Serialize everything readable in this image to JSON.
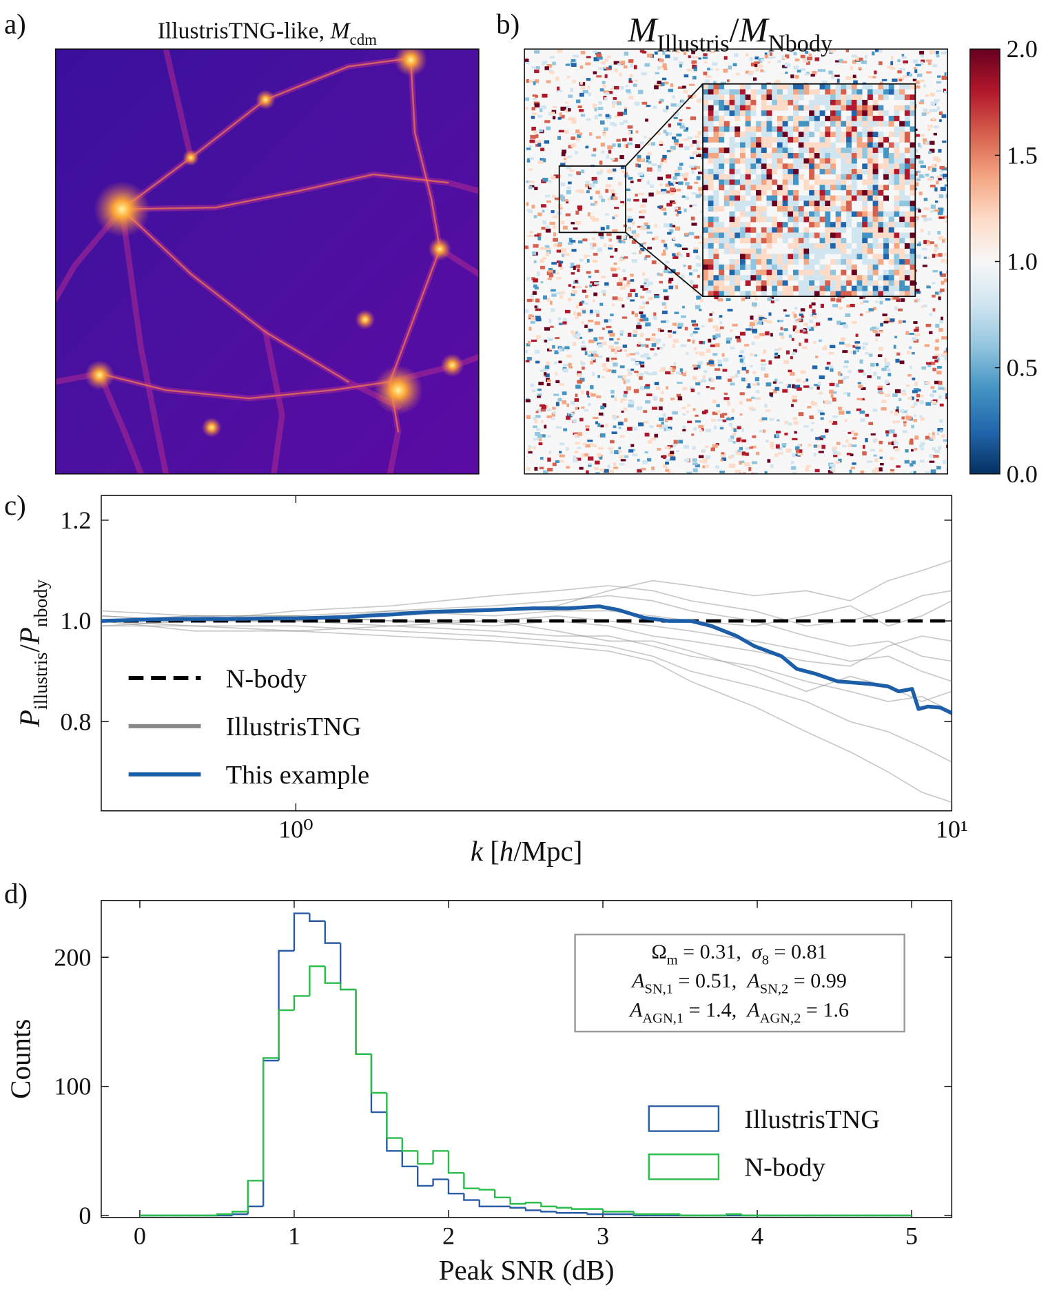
{
  "chart_data": [
    {
      "type": "image",
      "panel": "a)",
      "title": [
        {
          "text": "IllustrisTNG-like, "
        },
        {
          "math": "M",
          "sub": "cdm"
        }
      ],
      "colormap": "plasma"
    },
    {
      "type": "heatmap",
      "panel": "b)",
      "title": [
        {
          "math": "M",
          "sub": "Illustris"
        },
        {
          "text": "/"
        },
        {
          "math": "M",
          "sub": "Nbody"
        }
      ],
      "colormap": "RdBu_r",
      "clim": [
        0,
        2
      ],
      "cticks": [
        {
          "value": 0,
          "label": "0.0"
        },
        0.5,
        {
          "value": 1,
          "label": "1.0"
        },
        1.5,
        {
          "value": 2,
          "label": "2.0"
        }
      ]
    },
    {
      "type": "line",
      "panel": "c)",
      "xscale": "log",
      "xlim": [
        0.505,
        10
      ],
      "ylim": [
        0.623,
        1.249
      ],
      "xticks": [
        {
          "value": 1,
          "label": "10⁰"
        },
        {
          "value": 10,
          "label": "10¹"
        }
      ],
      "yticks": [
        0.8,
        {
          "value": 1,
          "label": "1.0"
        },
        1.2
      ],
      "xlabel": [
        {
          "math": "k"
        },
        {
          "text": " ["
        },
        {
          "math": "h"
        },
        {
          "text": "/Mpc]"
        }
      ],
      "ylabel": [
        {
          "math": "P",
          "sub": "illustris"
        },
        {
          "text": "/"
        },
        {
          "math": "P",
          "sub": "nbody"
        }
      ],
      "legend": "lower left",
      "series": [
        {
          "name": "N-body",
          "color": "#000000",
          "dash": true,
          "x": [
            0.505,
            10
          ],
          "values": [
            1,
            1
          ]
        },
        {
          "name": "IllustrisTNG",
          "color": "#888888",
          "x": [
            0.505,
            0.7,
            1,
            1.4,
            2,
            2.5,
            3,
            3.5,
            4,
            5,
            6,
            7,
            8,
            9,
            10
          ],
          "values": [
            [
              1.0,
              1.01,
              1.0,
              1.02,
              1.03,
              1.04,
              1.05,
              1.04,
              1.02,
              1.0,
              0.97,
              0.95,
              0.96,
              0.93,
              0.92
            ],
            [
              1.0,
              0.99,
              0.99,
              0.98,
              0.97,
              0.96,
              0.95,
              0.93,
              0.9,
              0.87,
              0.84,
              0.8,
              0.78,
              0.75,
              0.72
            ],
            [
              1.01,
              1.0,
              1.01,
              1.0,
              1.0,
              1.01,
              1.0,
              0.99,
              0.98,
              0.96,
              0.94,
              0.92,
              0.93,
              0.9,
              0.88
            ],
            [
              0.99,
              1.0,
              1.0,
              1.01,
              1.02,
              1.03,
              1.06,
              1.08,
              1.07,
              1.05,
              1.06,
              1.04,
              1.08,
              1.1,
              1.12
            ],
            [
              1.0,
              0.98,
              0.98,
              0.97,
              0.96,
              0.95,
              0.94,
              0.92,
              0.88,
              0.83,
              0.78,
              0.74,
              0.7,
              0.66,
              0.64
            ],
            [
              1.02,
              1.01,
              1.01,
              1.0,
              0.99,
              1.0,
              0.99,
              0.97,
              0.96,
              0.94,
              0.92,
              0.91,
              0.95,
              0.97,
              0.96
            ],
            [
              1.0,
              1.0,
              1.02,
              1.03,
              1.05,
              1.06,
              1.07,
              1.06,
              1.04,
              1.02,
              0.99,
              1.0,
              1.02,
              1.05,
              1.06
            ],
            [
              0.99,
              0.99,
              0.98,
              0.99,
              0.98,
              0.97,
              0.97,
              0.95,
              0.93,
              0.91,
              0.88,
              0.86,
              0.84,
              0.85,
              0.82
            ],
            [
              1.01,
              1.0,
              1.0,
              0.99,
              1.0,
              0.98,
              0.96,
              0.96,
              0.94,
              0.9,
              0.86,
              0.89,
              0.87,
              0.84,
              0.86
            ],
            [
              1.0,
              1.01,
              1.01,
              1.02,
              1.01,
              1.02,
              1.02,
              1.01,
              1.0,
              0.99,
              1.01,
              1.03,
              0.99,
              1.01,
              1.04
            ]
          ]
        },
        {
          "name": "This example",
          "color": "#1c5ea8",
          "x": [
            0.505,
            0.6,
            0.7,
            0.8,
            0.9,
            1.0,
            1.2,
            1.4,
            1.6,
            1.8,
            2.0,
            2.3,
            2.6,
            2.9,
            3.1,
            3.4,
            3.7,
            4.0,
            4.3,
            4.7,
            5.0,
            5.5,
            5.8,
            6.2,
            6.7,
            7.5,
            8.0,
            8.3,
            8.7,
            8.9,
            9.2,
            9.6,
            10
          ],
          "values": [
            1.0,
            1.003,
            1.004,
            1.004,
            1.005,
            1.005,
            1.008,
            1.013,
            1.018,
            1.02,
            1.022,
            1.025,
            1.025,
            1.029,
            1.022,
            1.006,
            1.0,
            1.0,
            0.99,
            0.97,
            0.95,
            0.93,
            0.905,
            0.895,
            0.88,
            0.875,
            0.87,
            0.86,
            0.865,
            0.825,
            0.83,
            0.828,
            0.817
          ]
        }
      ]
    },
    {
      "type": "histogram",
      "panel": "d)",
      "bins": [
        0,
        0.1,
        0.2,
        0.3,
        0.4,
        0.5,
        0.6,
        0.7,
        0.8,
        0.9,
        1,
        1.1,
        1.2,
        1.3,
        1.4,
        1.5,
        1.6,
        1.7,
        1.8,
        1.9,
        2,
        2.1,
        2.2,
        2.3,
        2.4,
        2.5,
        2.6,
        2.7,
        2.8,
        2.9,
        3,
        3.1,
        3.2,
        3.3,
        3.4,
        3.5,
        3.6,
        3.7,
        3.8,
        3.9,
        4,
        4.1,
        4.2,
        4.3,
        4.4,
        4.5,
        4.6,
        4.7,
        4.8,
        4.9,
        5
      ],
      "series": [
        {
          "name": "IllustrisTNG",
          "color": "#2a5ca6",
          "values": [
            0,
            0,
            0,
            0,
            0,
            0,
            1,
            7,
            120,
            205,
            234,
            228,
            211,
            175,
            125,
            80,
            50,
            38,
            23,
            28,
            17,
            12,
            7,
            7,
            6,
            4,
            3,
            2,
            2,
            1,
            1,
            1,
            0,
            0,
            0,
            0,
            0,
            0,
            0,
            0,
            0,
            0,
            0,
            0,
            0,
            0,
            0,
            0,
            0,
            0
          ]
        },
        {
          "name": "N-body",
          "color": "#2bbd4c",
          "values": [
            0,
            0,
            0,
            0,
            0,
            1,
            3,
            27,
            122,
            159,
            170,
            193,
            180,
            175,
            125,
            95,
            60,
            50,
            40,
            50,
            33,
            21,
            20,
            14,
            9,
            10,
            7,
            6,
            5,
            5,
            3,
            3,
            1,
            1,
            1,
            0,
            0,
            0,
            1,
            0,
            0,
            0,
            0,
            0,
            0,
            0,
            0,
            0,
            0,
            0
          ]
        }
      ],
      "xlim": [
        -0.25,
        5.26
      ],
      "ylim": [
        -1.5,
        244
      ],
      "xticks": [
        0,
        1,
        2,
        3,
        4,
        5
      ],
      "yticks": [
        0,
        100,
        200
      ],
      "xlabel": "Peak SNR (dB)",
      "ylabel": "Counts",
      "legend": "center right",
      "annotation": [
        [
          {
            "text": "Ω",
            "sub": "m"
          },
          {
            "text": " = 0.31,  "
          },
          {
            "math": "σ",
            "sub": "8"
          },
          {
            "text": " = 0.81"
          }
        ],
        [
          {
            "math": "A",
            "sub": "SN,1"
          },
          {
            "text": " = 0.51,  "
          },
          {
            "math": "A",
            "sub": "SN,2"
          },
          {
            "text": " = 0.99"
          }
        ],
        [
          {
            "math": "A",
            "sub": "AGN,1"
          },
          {
            "text": " = 1.4,  "
          },
          {
            "math": "A",
            "sub": "AGN,2"
          },
          {
            "text": " = 1.6"
          }
        ]
      ]
    }
  ]
}
